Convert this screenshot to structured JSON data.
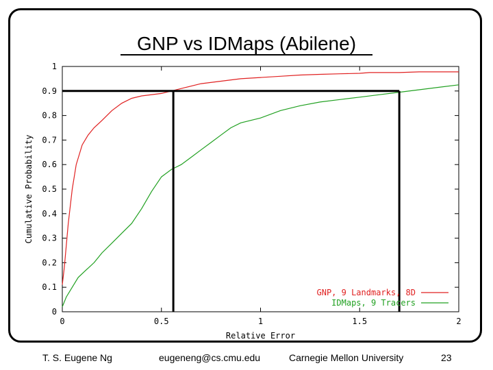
{
  "slide": {
    "title": "GNP vs IDMaps (Abilene)",
    "footer_author": "T. S. Eugene Ng",
    "footer_email": "eugeneng@cs.cmu.edu",
    "footer_org": "Carnegie Mellon University",
    "footer_page": "23"
  },
  "chart_data": {
    "type": "line",
    "title": "",
    "xlabel": "Relative Error",
    "ylabel": "Cumulative Probability",
    "xlim": [
      0,
      2
    ],
    "ylim": [
      0,
      1
    ],
    "x_ticks": [
      "0",
      "0.5",
      "1",
      "1.5",
      "2"
    ],
    "y_ticks": [
      "0",
      "0.1",
      "0.2",
      "0.3",
      "0.4",
      "0.5",
      "0.6",
      "0.7",
      "0.8",
      "0.9",
      "1"
    ],
    "grid": false,
    "legend_position": "bottom-right",
    "series": [
      {
        "name": "GNP, 9 Landmarks, 8D",
        "color": "#e02020",
        "x": [
          0,
          0.01,
          0.02,
          0.03,
          0.05,
          0.07,
          0.1,
          0.13,
          0.16,
          0.2,
          0.25,
          0.3,
          0.35,
          0.4,
          0.5,
          0.55,
          0.6,
          0.7,
          0.8,
          0.9,
          1.0,
          1.1,
          1.2,
          1.3,
          1.4,
          1.5,
          1.55,
          1.6,
          1.7,
          1.8,
          1.9,
          2.0
        ],
        "y": [
          0.11,
          0.18,
          0.27,
          0.36,
          0.5,
          0.6,
          0.68,
          0.72,
          0.75,
          0.78,
          0.82,
          0.85,
          0.87,
          0.88,
          0.89,
          0.9,
          0.91,
          0.93,
          0.94,
          0.95,
          0.955,
          0.96,
          0.965,
          0.968,
          0.97,
          0.972,
          0.975,
          0.975,
          0.975,
          0.978,
          0.978,
          0.978
        ]
      },
      {
        "name": "IDMaps, 9 Tracers",
        "color": "#20a020",
        "x": [
          0,
          0.02,
          0.05,
          0.08,
          0.12,
          0.16,
          0.2,
          0.25,
          0.3,
          0.35,
          0.4,
          0.45,
          0.5,
          0.55,
          0.6,
          0.65,
          0.7,
          0.75,
          0.8,
          0.85,
          0.9,
          1.0,
          1.1,
          1.2,
          1.3,
          1.4,
          1.5,
          1.6,
          1.7,
          1.8,
          1.9,
          2.0
        ],
        "y": [
          0.02,
          0.06,
          0.1,
          0.14,
          0.17,
          0.2,
          0.24,
          0.28,
          0.32,
          0.36,
          0.42,
          0.49,
          0.55,
          0.58,
          0.6,
          0.63,
          0.66,
          0.69,
          0.72,
          0.75,
          0.77,
          0.79,
          0.82,
          0.84,
          0.855,
          0.865,
          0.875,
          0.885,
          0.895,
          0.905,
          0.915,
          0.925
        ]
      }
    ],
    "annotations": {
      "hline_y": 0.9,
      "vlines_x": [
        0.56,
        1.7
      ]
    }
  }
}
